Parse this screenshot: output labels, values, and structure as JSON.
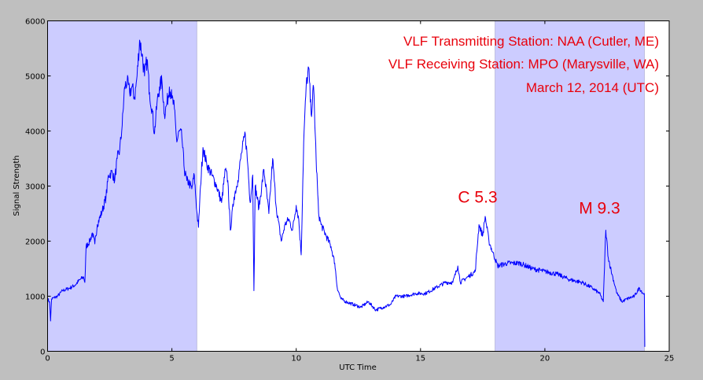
{
  "chart_data": {
    "type": "line",
    "xlabel": "UTC Time",
    "ylabel": "Signal Strength",
    "xlim": [
      0,
      25
    ],
    "ylim": [
      0,
      6000
    ],
    "xticks": [
      "0",
      "5",
      "10",
      "15",
      "20",
      "25"
    ],
    "yticks": [
      "0",
      "1000",
      "2000",
      "3000",
      "4000",
      "5000",
      "6000"
    ],
    "grid": false,
    "line_color": "#0000ff",
    "shade_color": "#ccccff",
    "shaded_regions": [
      [
        0,
        6
      ],
      [
        18,
        24
      ]
    ],
    "title_lines": [
      "VLF Transmitting Station: NAA (Cutler, ME)",
      "VLF Receiving Station: MPO (Marysville, WA)",
      "March 12, 2014 (UTC)"
    ],
    "annotations": [
      {
        "text": "C 5.3",
        "x": 17.3,
        "y": 2700
      },
      {
        "text": "M 9.3",
        "x": 22.2,
        "y": 2500
      }
    ],
    "series": [
      {
        "name": "Signal Strength",
        "points": [
          [
            0,
            950
          ],
          [
            0.08,
            900
          ],
          [
            0.12,
            550
          ],
          [
            0.16,
            950
          ],
          [
            0.4,
            1000
          ],
          [
            0.6,
            1100
          ],
          [
            0.9,
            1150
          ],
          [
            1.1,
            1200
          ],
          [
            1.3,
            1300
          ],
          [
            1.45,
            1350
          ],
          [
            1.5,
            1250
          ],
          [
            1.55,
            1900
          ],
          [
            1.7,
            2000
          ],
          [
            1.8,
            2150
          ],
          [
            1.9,
            1950
          ],
          [
            2.0,
            2300
          ],
          [
            2.2,
            2550
          ],
          [
            2.35,
            2800
          ],
          [
            2.45,
            3200
          ],
          [
            2.6,
            3250
          ],
          [
            2.7,
            3100
          ],
          [
            2.8,
            3500
          ],
          [
            2.9,
            3650
          ],
          [
            3.0,
            4100
          ],
          [
            3.1,
            4800
          ],
          [
            3.2,
            4900
          ],
          [
            3.3,
            4700
          ],
          [
            3.4,
            4800
          ],
          [
            3.5,
            4600
          ],
          [
            3.6,
            5000
          ],
          [
            3.7,
            5650
          ],
          [
            3.8,
            5400
          ],
          [
            3.9,
            5000
          ],
          [
            4.0,
            5300
          ],
          [
            4.1,
            4700
          ],
          [
            4.2,
            4400
          ],
          [
            4.3,
            3950
          ],
          [
            4.4,
            4500
          ],
          [
            4.5,
            4800
          ],
          [
            4.6,
            4900
          ],
          [
            4.7,
            4300
          ],
          [
            4.8,
            4500
          ],
          [
            4.9,
            4800
          ],
          [
            5.0,
            4600
          ],
          [
            5.1,
            4400
          ],
          [
            5.2,
            3800
          ],
          [
            5.3,
            4000
          ],
          [
            5.4,
            3900
          ],
          [
            5.5,
            3300
          ],
          [
            5.6,
            3100
          ],
          [
            5.7,
            3050
          ],
          [
            5.8,
            2950
          ],
          [
            5.9,
            3200
          ],
          [
            6.0,
            2550
          ],
          [
            6.07,
            2250
          ],
          [
            6.15,
            3000
          ],
          [
            6.25,
            3700
          ],
          [
            6.4,
            3400
          ],
          [
            6.6,
            3200
          ],
          [
            6.8,
            3000
          ],
          [
            7.0,
            2700
          ],
          [
            7.15,
            3300
          ],
          [
            7.25,
            3100
          ],
          [
            7.35,
            2200
          ],
          [
            7.5,
            2800
          ],
          [
            7.65,
            3100
          ],
          [
            7.8,
            3600
          ],
          [
            7.95,
            3950
          ],
          [
            8.05,
            3400
          ],
          [
            8.15,
            2700
          ],
          [
            8.25,
            3200
          ],
          [
            8.3,
            1100
          ],
          [
            8.35,
            3000
          ],
          [
            8.5,
            2600
          ],
          [
            8.7,
            3300
          ],
          [
            8.9,
            2500
          ],
          [
            9.05,
            3500
          ],
          [
            9.2,
            2600
          ],
          [
            9.4,
            2000
          ],
          [
            9.55,
            2300
          ],
          [
            9.7,
            2400
          ],
          [
            9.85,
            2200
          ],
          [
            10.0,
            2650
          ],
          [
            10.1,
            2400
          ],
          [
            10.2,
            1750
          ],
          [
            10.3,
            3800
          ],
          [
            10.4,
            4800
          ],
          [
            10.5,
            5150
          ],
          [
            10.6,
            4300
          ],
          [
            10.7,
            4800
          ],
          [
            10.8,
            3500
          ],
          [
            10.9,
            2500
          ],
          [
            11.0,
            2300
          ],
          [
            11.2,
            2100
          ],
          [
            11.4,
            1900
          ],
          [
            11.55,
            1600
          ],
          [
            11.65,
            1150
          ],
          [
            11.8,
            950
          ],
          [
            12.0,
            900
          ],
          [
            12.3,
            850
          ],
          [
            12.6,
            800
          ],
          [
            12.9,
            900
          ],
          [
            13.2,
            750
          ],
          [
            13.5,
            800
          ],
          [
            13.8,
            850
          ],
          [
            14.0,
            1000
          ],
          [
            14.4,
            1000
          ],
          [
            14.8,
            1050
          ],
          [
            15.2,
            1050
          ],
          [
            15.6,
            1150
          ],
          [
            16.0,
            1250
          ],
          [
            16.3,
            1250
          ],
          [
            16.5,
            1550
          ],
          [
            16.6,
            1250
          ],
          [
            16.9,
            1350
          ],
          [
            17.2,
            1450
          ],
          [
            17.35,
            2300
          ],
          [
            17.5,
            2100
          ],
          [
            17.6,
            2450
          ],
          [
            17.75,
            2000
          ],
          [
            17.9,
            1800
          ],
          [
            18.1,
            1550
          ],
          [
            18.5,
            1600
          ],
          [
            19.0,
            1600
          ],
          [
            19.5,
            1500
          ],
          [
            20.0,
            1450
          ],
          [
            20.5,
            1400
          ],
          [
            21.0,
            1300
          ],
          [
            21.5,
            1250
          ],
          [
            21.9,
            1150
          ],
          [
            22.2,
            1050
          ],
          [
            22.35,
            900
          ],
          [
            22.45,
            2200
          ],
          [
            22.55,
            1700
          ],
          [
            22.7,
            1400
          ],
          [
            22.9,
            1050
          ],
          [
            23.1,
            900
          ],
          [
            23.3,
            950
          ],
          [
            23.6,
            1000
          ],
          [
            23.8,
            1150
          ],
          [
            23.95,
            1050
          ],
          [
            24.0,
            1050
          ],
          [
            24.02,
            80
          ]
        ]
      }
    ]
  }
}
